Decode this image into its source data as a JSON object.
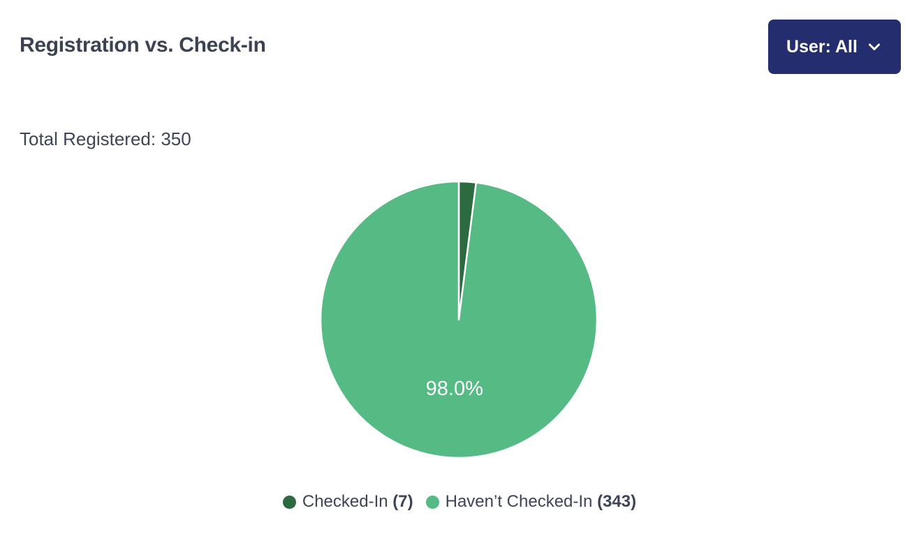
{
  "header": {
    "title": "Registration vs. Check-in",
    "user_filter": {
      "label": "User: All",
      "icon": "chevron-down-icon",
      "background_color": "#242e6f",
      "text_color": "#ffffff"
    }
  },
  "summary": {
    "total_registered": "Total Registered: 350"
  },
  "chart_data": {
    "type": "pie",
    "title": "Registration vs. Check-in",
    "total": 350,
    "slices": [
      {
        "label": "Checked-In",
        "value": 7,
        "percent": 2.0,
        "count_display": "(7)",
        "color": "#2c6b40"
      },
      {
        "label": "Haven’t Checked-In",
        "value": 343,
        "percent": 98.0,
        "count_display": "(343)",
        "color": "#55ba84",
        "inside_label": "98.0%"
      }
    ],
    "start_angle_deg": 0,
    "direction": "clockwise",
    "inside_label_color": "#ffffff",
    "slice_border_color": "#ffffff",
    "legend_position": "bottom"
  },
  "colors": {
    "text": "#3c4557",
    "accent_navy": "#242e6f",
    "dark_green": "#2c6b40",
    "light_green": "#55ba84"
  }
}
